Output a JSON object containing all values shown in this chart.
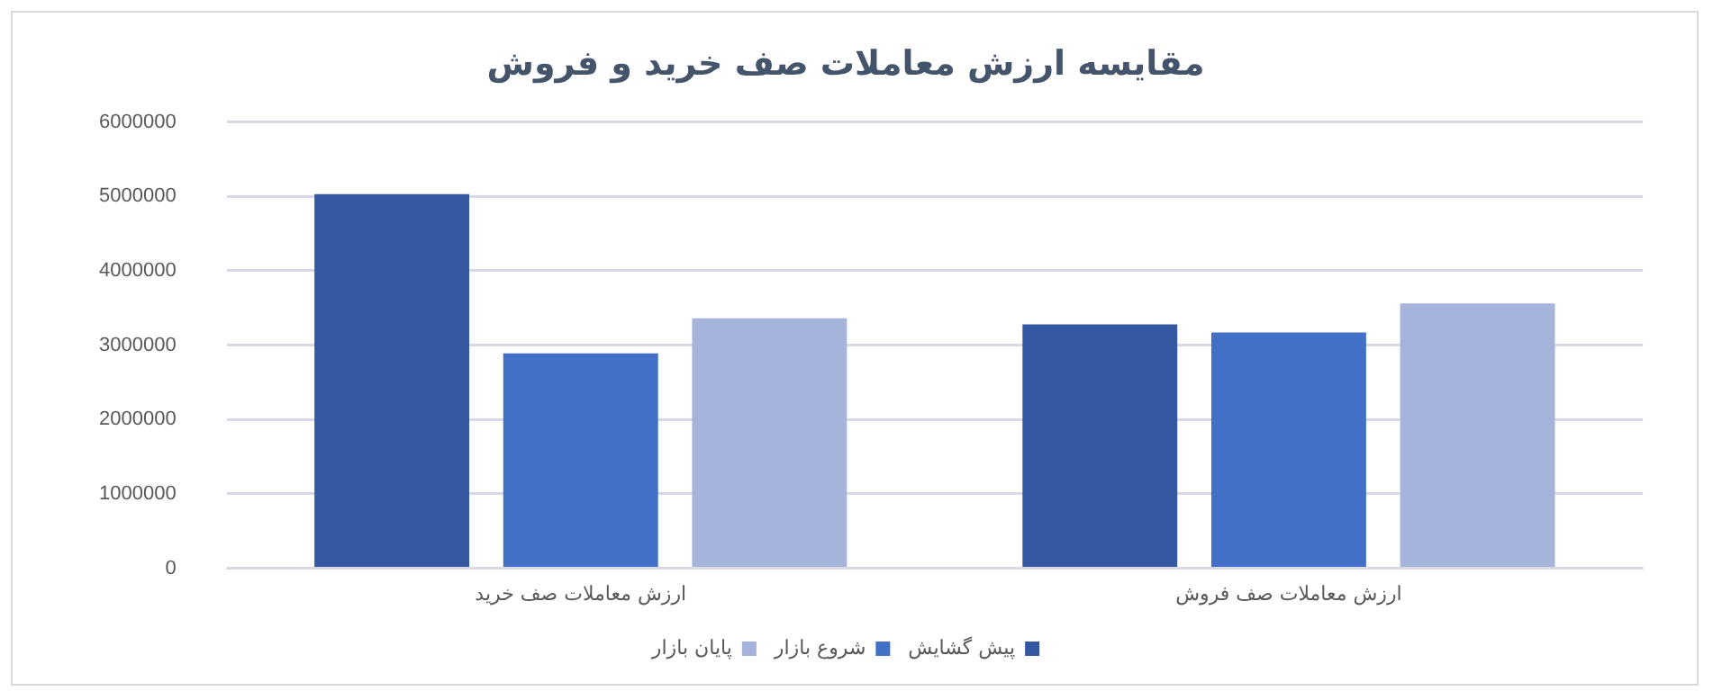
{
  "chart_data": {
    "type": "bar",
    "title": "مقایسه ارزش معاملات صف خرید و فروش",
    "categories": [
      "ارزش معاملات صف خرید",
      "ارزش معاملات صف فروش"
    ],
    "series": [
      {
        "name": "پیش گشایش",
        "color": "#3558a3",
        "values": [
          5030000,
          3280000
        ]
      },
      {
        "name": "شروع بازار",
        "color": "#4270c6",
        "values": [
          2890000,
          3170000
        ]
      },
      {
        "name": "پایان بازار",
        "color": "#a6b4dc",
        "values": [
          3360000,
          3560000
        ]
      }
    ],
    "ylim": [
      0,
      6000000
    ],
    "yticks": [
      0,
      1000000,
      2000000,
      3000000,
      4000000,
      5000000,
      6000000
    ],
    "grid": "y",
    "legend": "bottom"
  }
}
